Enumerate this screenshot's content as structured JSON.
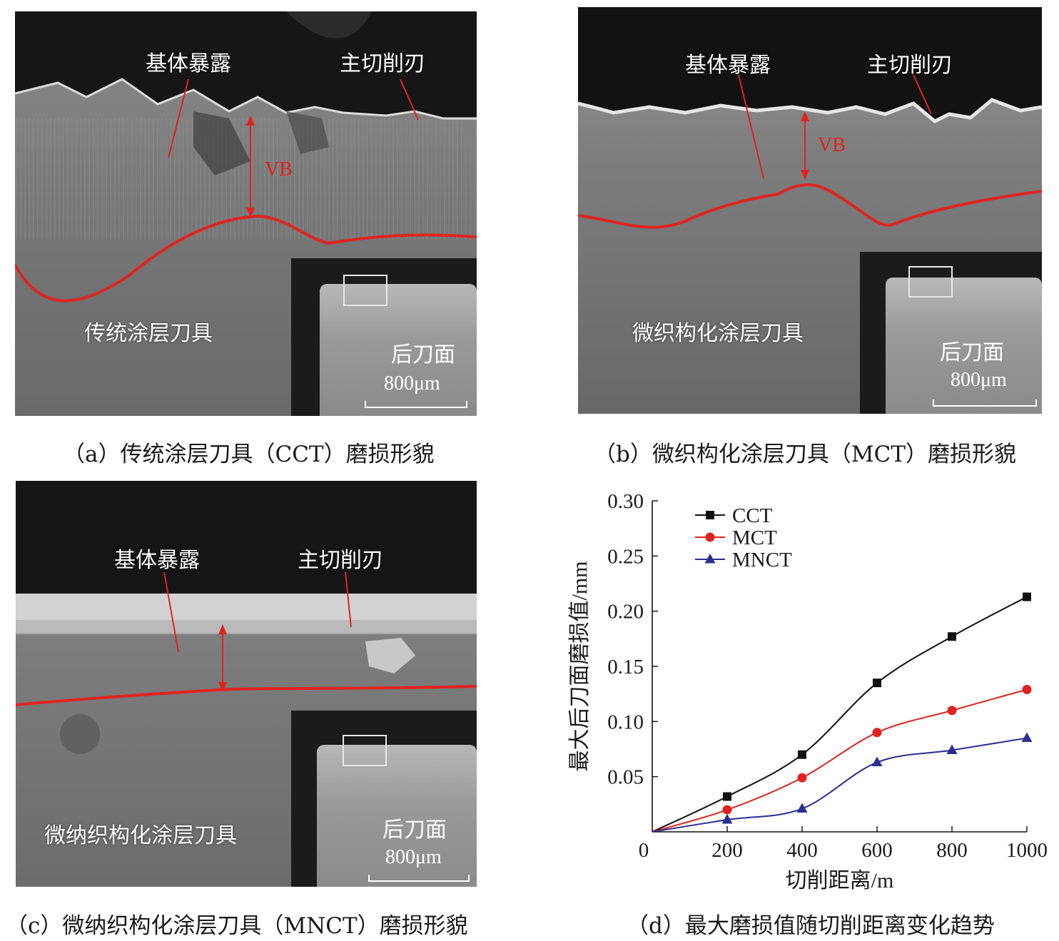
{
  "panels": {
    "a": {
      "label_exposure": "基体暴露",
      "label_edge": "主切削刃",
      "label_vb": "VB",
      "label_tool": "传统涂层刀具",
      "inset_label": "后刀面",
      "scale": "800μm",
      "caption": "（a）传统涂层刀具（CCT）磨损形貌"
    },
    "b": {
      "label_exposure": "基体暴露",
      "label_edge": "主切削刃",
      "label_vb": "VB",
      "label_tool": "微织构化涂层刀具",
      "inset_label": "后刀面",
      "scale": "800μm",
      "caption": "（b）微织构化涂层刀具（MCT）磨损形貌"
    },
    "c": {
      "label_exposure": "基体暴露",
      "label_edge": "主切削刃",
      "label_tool": "微纳织构化涂层刀具",
      "inset_label": "后刀面",
      "scale": "800μm",
      "caption": "（c）微纳织构化涂层刀具（MNCT）磨损形貌"
    },
    "d": {
      "caption": "（d）最大磨损值随切削距离变化趋势"
    }
  },
  "colors": {
    "annotation_red": "#e0231f",
    "CCT": "#111111",
    "MCT": "#e0231f",
    "MNCT": "#2b2f8f"
  },
  "chart_data": {
    "type": "line",
    "xlabel": "切削距离/m",
    "ylabel": "最大后刀面磨损值/mm",
    "xlim": [
      0,
      1000
    ],
    "ylim": [
      0,
      0.3
    ],
    "x_ticks": [
      "0",
      "200",
      "400",
      "600",
      "800",
      "1000"
    ],
    "y_ticks": [
      "0.05",
      "0.10",
      "0.15",
      "0.20",
      "0.25",
      "0.30"
    ],
    "legend_position": "top-left",
    "series": [
      {
        "name": "CCT",
        "marker": "square",
        "x": [
          0,
          200,
          400,
          600,
          800,
          1000
        ],
        "values": [
          0,
          0.032,
          0.07,
          0.135,
          0.177,
          0.213
        ]
      },
      {
        "name": "MCT",
        "marker": "circle",
        "x": [
          0,
          200,
          400,
          600,
          800,
          1000
        ],
        "values": [
          0,
          0.02,
          0.049,
          0.09,
          0.11,
          0.129
        ]
      },
      {
        "name": "MNCT",
        "marker": "triangle",
        "x": [
          0,
          200,
          400,
          600,
          800,
          1000
        ],
        "values": [
          0,
          0.011,
          0.021,
          0.063,
          0.074,
          0.085
        ]
      }
    ]
  }
}
